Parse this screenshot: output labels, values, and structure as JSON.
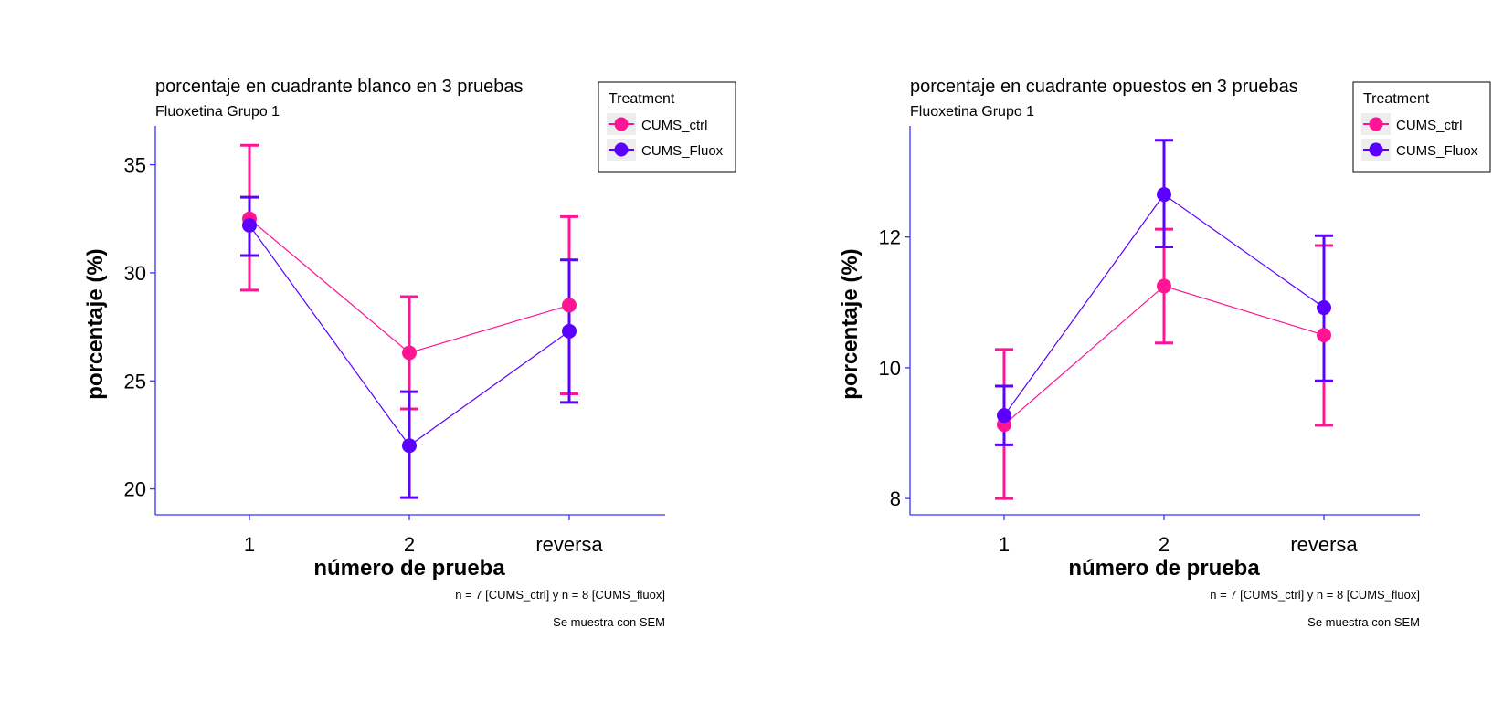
{
  "colors": {
    "CUMS_ctrl": "#FF1493",
    "CUMS_Fluox": "#5B00FF",
    "axis": "#3333FF"
  },
  "chart_data": [
    {
      "type": "line",
      "title": "porcentaje en cuadrante blanco en 3 pruebas",
      "subtitle": "Fluoxetina Grupo 1",
      "xlabel": "número de prueba",
      "ylabel": "porcentaje (%)",
      "categories": [
        "1",
        "2",
        "reversa"
      ],
      "ylim": [
        18.8,
        36.8
      ],
      "yticks": [
        20,
        25,
        30,
        35
      ],
      "legend": {
        "title": "Treatment",
        "position": "top-right"
      },
      "series": [
        {
          "name": "CUMS_ctrl",
          "values": [
            32.5,
            26.3,
            28.5
          ],
          "lower": [
            29.2,
            23.7,
            24.4
          ],
          "upper": [
            35.9,
            28.9,
            32.6
          ]
        },
        {
          "name": "CUMS_Fluox",
          "values": [
            32.2,
            22.0,
            27.3
          ],
          "lower": [
            30.8,
            19.6,
            24.0
          ],
          "upper": [
            33.5,
            24.5,
            30.6
          ]
        }
      ],
      "captions": [
        "n = 7  [CUMS_ctrl] y n = 8 [CUMS_fluox]",
        "Se muestra con SEM"
      ]
    },
    {
      "type": "line",
      "title": "porcentaje en cuadrante opuestos en 3 pruebas",
      "subtitle": "Fluoxetina Grupo 1",
      "xlabel": "número de prueba",
      "ylabel": "porcentaje (%)",
      "categories": [
        "1",
        "2",
        "reversa"
      ],
      "ylim": [
        7.75,
        13.7
      ],
      "yticks": [
        8,
        10,
        12
      ],
      "legend": {
        "title": "Treatment",
        "position": "top-right"
      },
      "series": [
        {
          "name": "CUMS_ctrl",
          "values": [
            9.13,
            11.25,
            10.5
          ],
          "lower": [
            8.0,
            10.38,
            9.12
          ],
          "upper": [
            10.28,
            12.12,
            11.87
          ]
        },
        {
          "name": "CUMS_Fluox",
          "values": [
            9.27,
            12.65,
            10.92
          ],
          "lower": [
            8.82,
            11.85,
            9.8
          ],
          "upper": [
            9.72,
            13.48,
            12.02
          ]
        }
      ],
      "captions": [
        "n = 7  [CUMS_ctrl] y n = 8 [CUMS_fluox]",
        "Se muestra con SEM"
      ]
    }
  ]
}
